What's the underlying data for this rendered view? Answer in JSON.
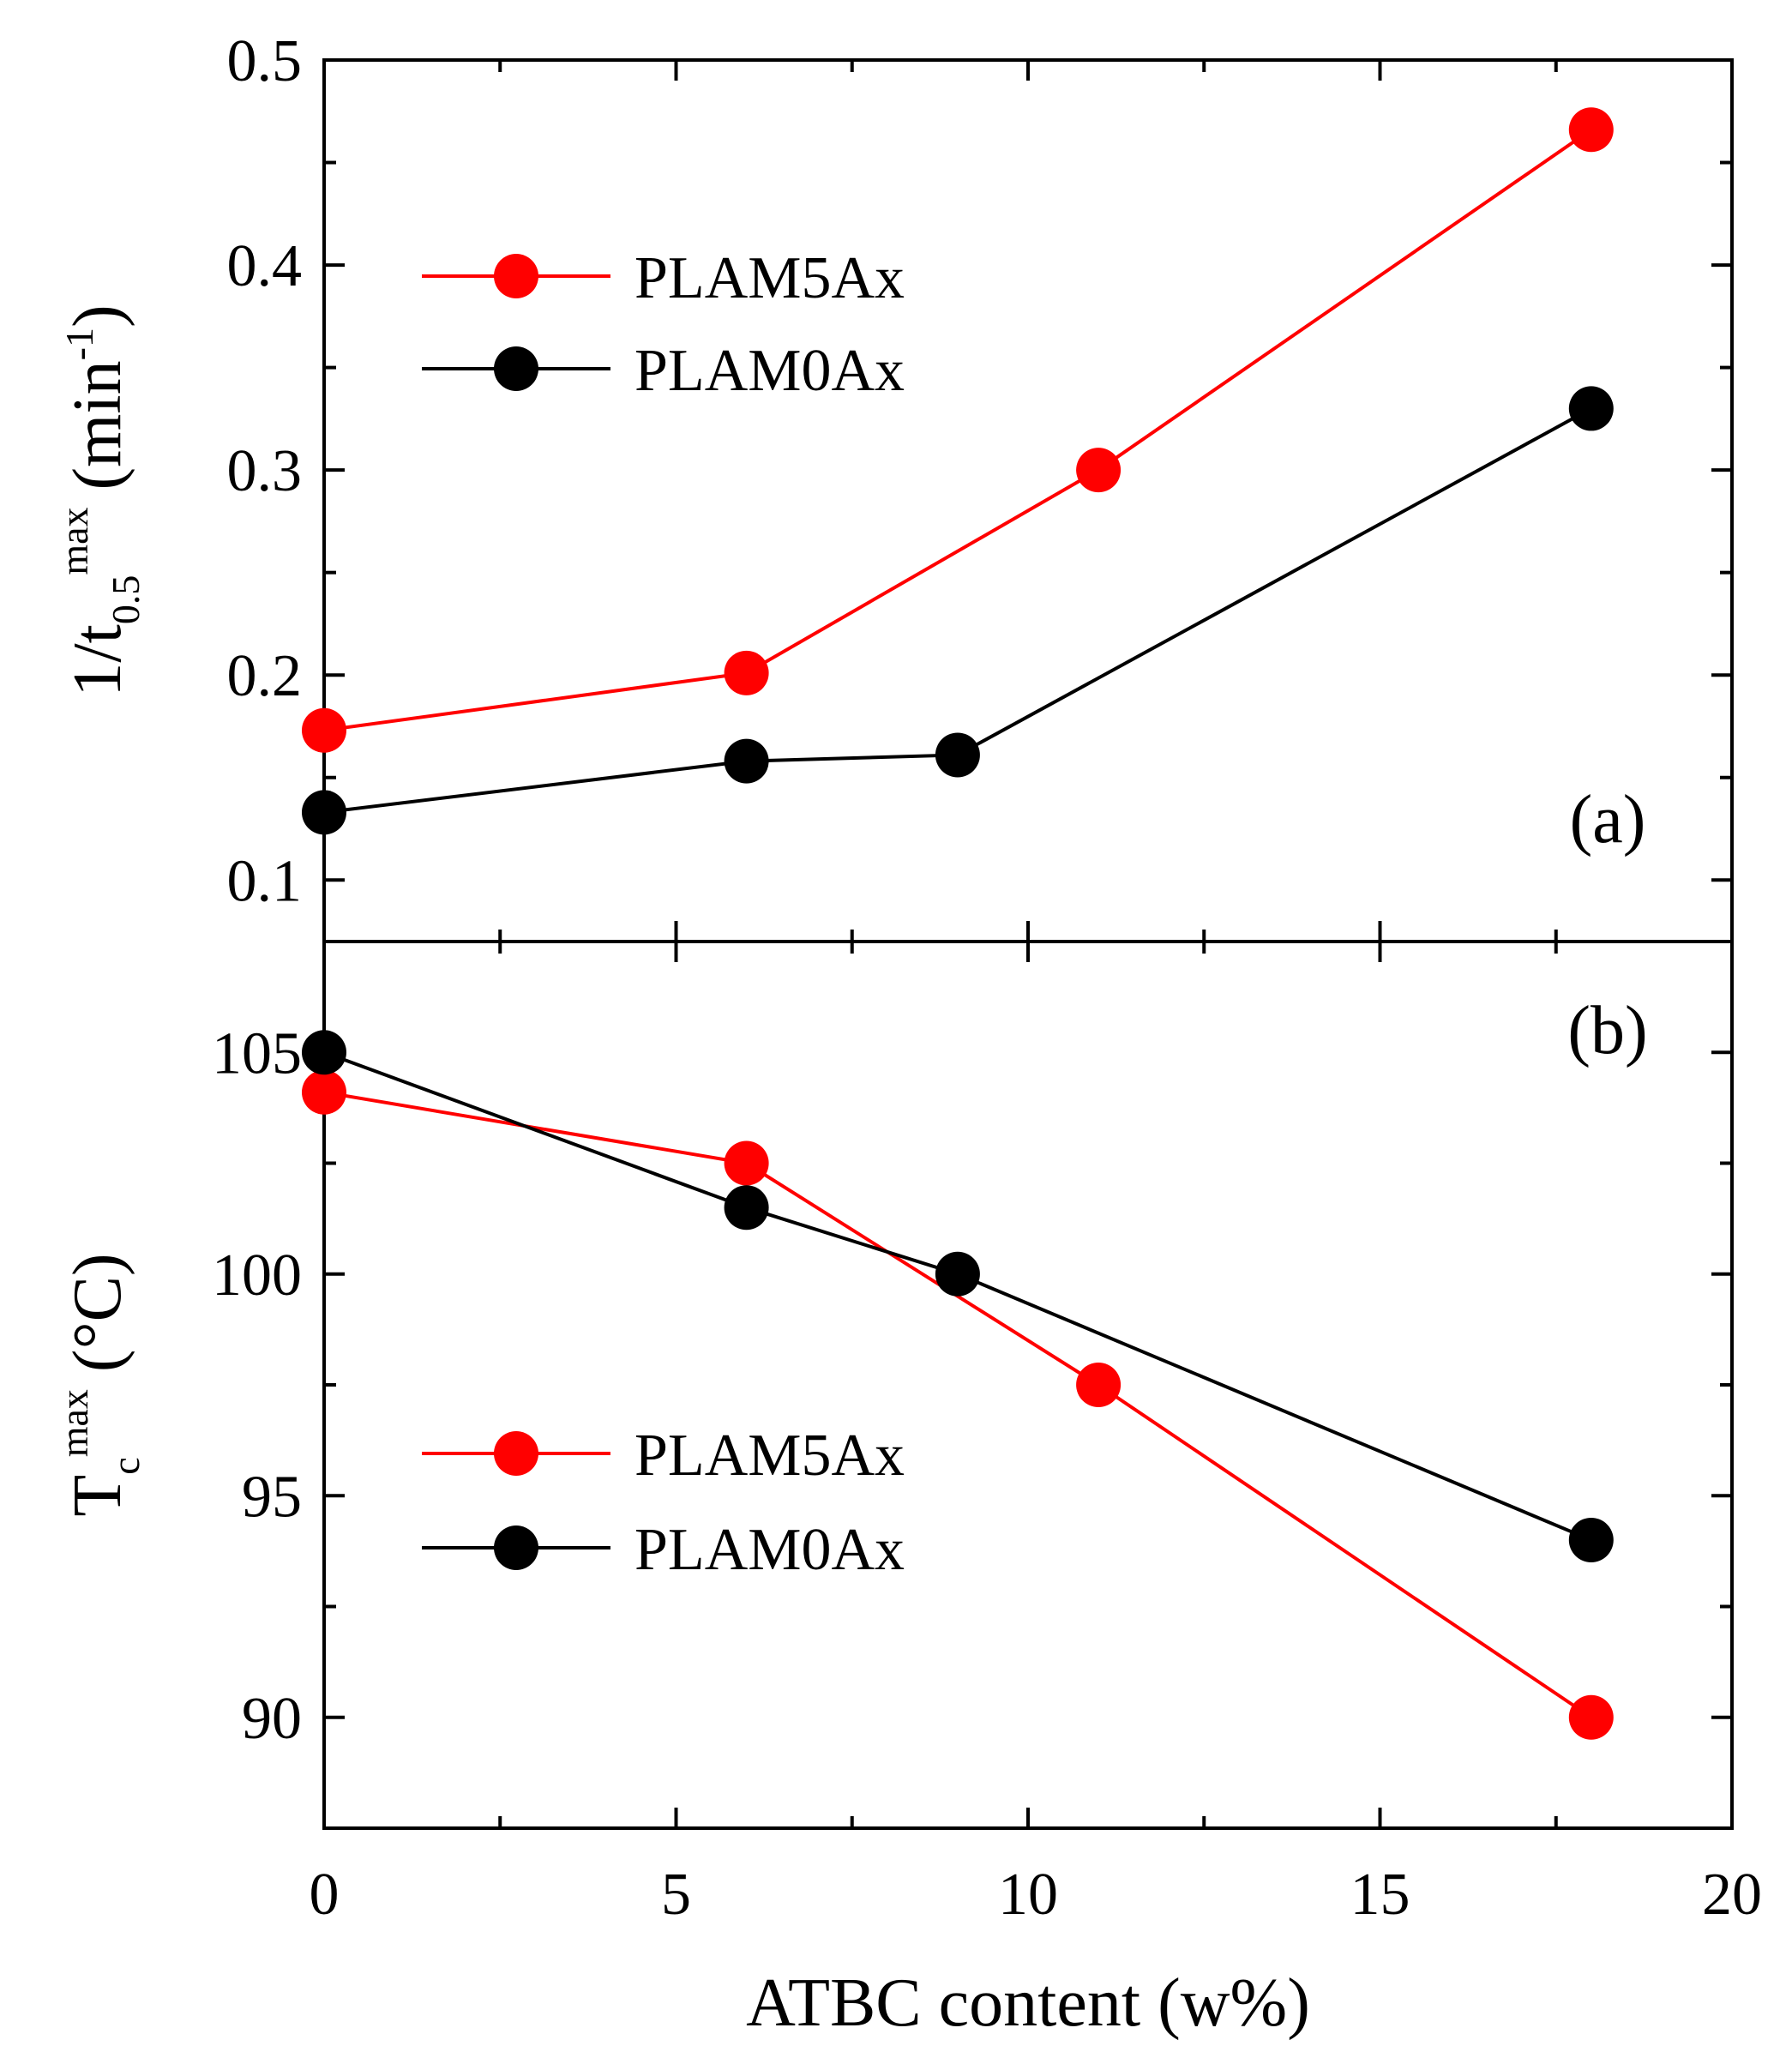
{
  "chart_data": [
    {
      "type": "line",
      "panel": "(a)",
      "ylabel": {
        "base": "1/t",
        "sub": "0.5",
        "sup": "max",
        "unit_open": " (min",
        "unit_sup": "-1",
        "unit_close": ")"
      },
      "ylim": [
        0.07,
        0.5
      ],
      "yticks": [
        0.1,
        0.2,
        0.3,
        0.4,
        0.5
      ],
      "ytick_labels": [
        "0.1",
        "0.2",
        "0.3",
        "0.4",
        "0.5"
      ],
      "legend_position": "upper-left",
      "series": [
        {
          "name": "PLAM5Ax",
          "color": "#ff0000",
          "x": [
            0,
            6,
            11,
            18
          ],
          "y": [
            0.173,
            0.201,
            0.3,
            0.466
          ]
        },
        {
          "name": "PLAM0Ax",
          "color": "#000000",
          "x": [
            0,
            6,
            9,
            18
          ],
          "y": [
            0.133,
            0.158,
            0.161,
            0.33
          ]
        }
      ]
    },
    {
      "type": "line",
      "panel": "(b)",
      "ylabel": {
        "base": "T",
        "sub": "c",
        "sup": "max",
        "unit": " (°C)"
      },
      "ylim": [
        87.5,
        107.5
      ],
      "yticks": [
        90,
        95,
        100,
        105
      ],
      "ytick_labels": [
        "90",
        "95",
        "100",
        "105"
      ],
      "legend_position": "lower-left",
      "series": [
        {
          "name": "PLAM5Ax",
          "color": "#ff0000",
          "x": [
            0,
            6,
            11,
            18
          ],
          "y": [
            104.1,
            102.5,
            97.5,
            90
          ]
        },
        {
          "name": "PLAM0Ax",
          "color": "#000000",
          "x": [
            0,
            6,
            9,
            18
          ],
          "y": [
            105,
            101.5,
            100,
            94
          ]
        }
      ]
    }
  ],
  "xaxis": {
    "label": "ATBC content (w%)",
    "xlim": [
      0,
      20
    ],
    "ticks": [
      0,
      5,
      10,
      15,
      20
    ],
    "tick_labels": [
      "0",
      "5",
      "10",
      "15",
      "20"
    ]
  }
}
